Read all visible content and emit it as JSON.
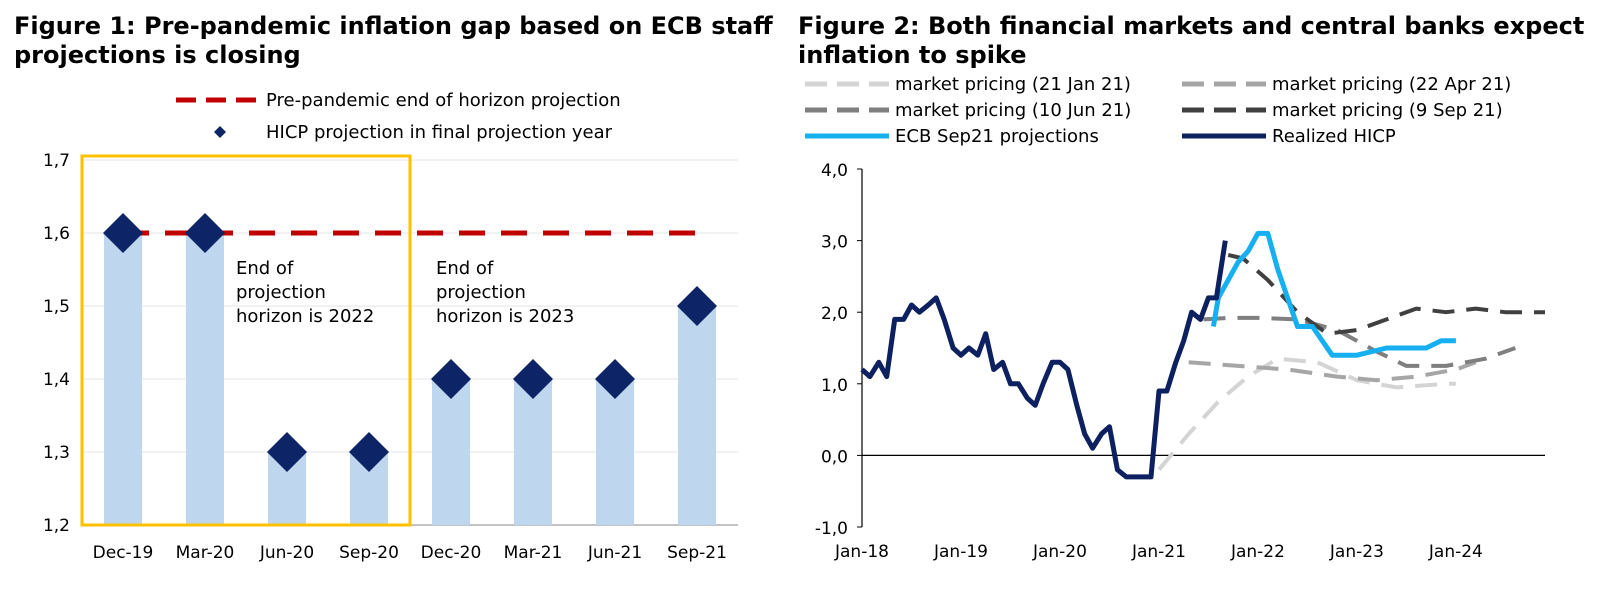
{
  "figure1": {
    "title": "Figure 1: Pre-pandemic inflation gap based on ECB staff projections is closing",
    "chart_data": {
      "type": "bar",
      "categories": [
        "Dec-19",
        "Mar-20",
        "Jun-20",
        "Sep-20",
        "Dec-20",
        "Mar-21",
        "Jun-21",
        "Sep-21"
      ],
      "series": [
        {
          "name": "HICP projection in final projection year",
          "values": [
            1.6,
            1.6,
            1.3,
            1.3,
            1.4,
            1.4,
            1.4,
            1.5
          ],
          "marker": "diamond"
        },
        {
          "name": "Pre-pandemic end of horizon projection",
          "values": [
            1.6,
            1.6,
            1.6,
            1.6,
            1.6,
            1.6,
            1.6,
            1.6
          ],
          "style": "dashed"
        }
      ],
      "ylim": [
        1.2,
        1.7
      ],
      "yticks": [
        "1,2",
        "1,3",
        "1,4",
        "1,5",
        "1,6",
        "1,7"
      ],
      "legend": [
        "Pre-pandemic end of horizon projection",
        "HICP projection in final projection year"
      ],
      "annotations": [
        {
          "lines": [
            "End of",
            "projection",
            "horizon is 2022"
          ]
        },
        {
          "lines": [
            "End of",
            "projection",
            "horizon is 2023"
          ]
        }
      ],
      "colors": {
        "bar": "#bed6ee",
        "diamond": "#0d2466",
        "dash": "#c00000",
        "highlight": "#ffc000"
      }
    }
  },
  "figure2": {
    "title": "Figure 2: Both financial markets and central banks expect inflation to spike",
    "chart_data": {
      "type": "line",
      "xticks": [
        "Jan-18",
        "Jan-19",
        "Jan-20",
        "Jan-21",
        "Jan-22",
        "Jan-23",
        "Jan-24"
      ],
      "yticks": [
        "-1,0",
        "0,0",
        "1,0",
        "2,0",
        "3,0",
        "4,0"
      ],
      "ylim": [
        -1.0,
        4.0
      ],
      "xlim": [
        2018.0,
        2024.9
      ],
      "series": [
        {
          "name": "market pricing (21 Jan 21)",
          "color": "#d4d4d4",
          "dash": true,
          "x": [
            2021.0,
            2021.3,
            2021.6,
            2021.9,
            2022.2,
            2022.6,
            2023.0,
            2023.4,
            2023.9,
            2024.0
          ],
          "y": [
            -0.2,
            0.3,
            0.75,
            1.1,
            1.35,
            1.3,
            1.05,
            0.95,
            1.0,
            1.0
          ]
        },
        {
          "name": "market pricing (22 Apr 21)",
          "color": "#a6a6a6",
          "dash": true,
          "x": [
            2021.3,
            2021.8,
            2022.3,
            2022.8,
            2023.2,
            2023.6,
            2024.0,
            2024.2
          ],
          "y": [
            1.3,
            1.25,
            1.2,
            1.1,
            1.05,
            1.1,
            1.2,
            1.3
          ]
        },
        {
          "name": "market pricing (10 Jun 21)",
          "color": "#7f7f7f",
          "dash": true,
          "x": [
            2021.45,
            2021.7,
            2022.0,
            2022.4,
            2022.8,
            2023.2,
            2023.5,
            2023.9,
            2024.3,
            2024.6
          ],
          "y": [
            1.9,
            1.92,
            1.92,
            1.9,
            1.75,
            1.45,
            1.25,
            1.25,
            1.35,
            1.5
          ]
        },
        {
          "name": "market pricing (9 Sep 21)",
          "color": "#404040",
          "dash": true,
          "x": [
            2021.7,
            2021.85,
            2022.1,
            2022.4,
            2022.7,
            2023.0,
            2023.3,
            2023.6,
            2023.9,
            2024.2,
            2024.5,
            2024.9
          ],
          "y": [
            2.8,
            2.75,
            2.45,
            2.0,
            1.7,
            1.75,
            1.9,
            2.05,
            2.0,
            2.05,
            2.0,
            2.0
          ]
        },
        {
          "name": "ECB Sep21 projections",
          "color": "#16aff0",
          "dash": false,
          "x": [
            2021.55,
            2021.6,
            2021.8,
            2021.9,
            2022.0,
            2022.1,
            2022.2,
            2022.3,
            2022.4,
            2022.55,
            2022.75,
            2023.0,
            2023.3,
            2023.7,
            2023.85,
            2024.0
          ],
          "y": [
            1.8,
            2.2,
            2.7,
            2.85,
            3.1,
            3.1,
            2.6,
            2.2,
            1.8,
            1.8,
            1.4,
            1.4,
            1.5,
            1.5,
            1.6,
            1.6
          ]
        },
        {
          "name": "Realized HICP",
          "color": "#0d2060",
          "dash": false,
          "x": [
            2018.0,
            2018.08,
            2018.17,
            2018.25,
            2018.33,
            2018.42,
            2018.5,
            2018.58,
            2018.67,
            2018.75,
            2018.83,
            2018.92,
            2019.0,
            2019.08,
            2019.17,
            2019.25,
            2019.33,
            2019.42,
            2019.5,
            2019.58,
            2019.67,
            2019.75,
            2019.83,
            2019.92,
            2020.0,
            2020.08,
            2020.17,
            2020.25,
            2020.33,
            2020.42,
            2020.5,
            2020.58,
            2020.67,
            2020.75,
            2020.83,
            2020.92,
            2021.0,
            2021.08,
            2021.17,
            2021.25,
            2021.33,
            2021.42,
            2021.5,
            2021.58,
            2021.67
          ],
          "y": [
            1.2,
            1.1,
            1.3,
            1.1,
            1.9,
            1.9,
            2.1,
            2.0,
            2.1,
            2.2,
            1.9,
            1.5,
            1.4,
            1.5,
            1.4,
            1.7,
            1.2,
            1.3,
            1.0,
            1.0,
            0.8,
            0.7,
            1.0,
            1.3,
            1.3,
            1.2,
            0.7,
            0.3,
            0.1,
            0.3,
            0.4,
            -0.2,
            -0.3,
            -0.3,
            -0.3,
            -0.3,
            0.9,
            0.9,
            1.3,
            1.6,
            2.0,
            1.9,
            2.2,
            2.2,
            3.0
          ]
        }
      ],
      "legend": [
        "market pricing (21 Jan 21)",
        "market pricing (22 Apr 21)",
        "market pricing (10 Jun 21)",
        "market pricing (9 Sep 21)",
        "ECB Sep21 projections",
        "Realized HICP"
      ]
    }
  }
}
